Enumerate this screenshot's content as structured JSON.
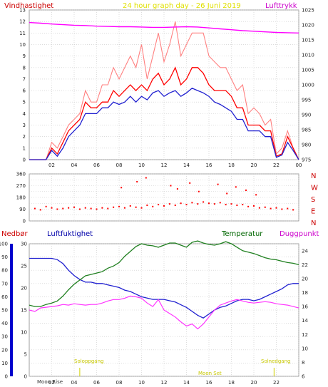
{
  "colors": {
    "wind": "#ff0000",
    "gust": "#ff8080",
    "pressure": "#ff00ff",
    "avg_wind": "#2020d0",
    "humidity": "#2020d0",
    "temperature": "#208020",
    "dewpoint": "#ff33ff",
    "rain": "#0000cc",
    "title": "#e0e000",
    "sun": "#d0d000"
  },
  "chart_data": [
    {
      "type": "line",
      "panel": "wind-pressure",
      "title": "24 hour graph day - 26 Juni 2019",
      "left_label": "Vindhastighet",
      "right_label": "Lufttrykk",
      "xticks": [
        "02",
        "04",
        "06",
        "08",
        "10",
        "12",
        "14",
        "16",
        "18",
        "20",
        "22",
        "00"
      ],
      "ylim_left": [
        0,
        13
      ],
      "yticks_left": [
        "0",
        "1",
        "2",
        "3",
        "4",
        "5",
        "6",
        "7",
        "8",
        "9",
        "10",
        "11",
        "12",
        "13"
      ],
      "ylim_right": [
        975,
        1025
      ],
      "yticks_right": [
        "975",
        "980",
        "985",
        "990",
        "995",
        "1000",
        "1005",
        "1010",
        "1015",
        "1020",
        "1025"
      ],
      "series": [
        {
          "key": "gust",
          "x": [
            0,
            0.5,
            1,
            1.5,
            2,
            2.5,
            3,
            3.5,
            4,
            4.5,
            5,
            5.5,
            6,
            6.5,
            7,
            7.5,
            8,
            8.5,
            9,
            9.5,
            10,
            10.5,
            11,
            11.5,
            12,
            12.5,
            13,
            13.5,
            14,
            14.5,
            15,
            15.5,
            16,
            16.5,
            17,
            17.5,
            18,
            18.5,
            19,
            19.5,
            20,
            20.5,
            21,
            21.5,
            22,
            22.5,
            23,
            23.5,
            24
          ],
          "y": [
            0,
            0,
            0,
            0,
            1.5,
            1,
            2,
            3,
            3.5,
            4,
            6,
            5,
            5,
            6.5,
            6.5,
            8,
            7,
            8,
            9,
            8,
            10,
            7,
            9,
            11,
            8.5,
            10,
            12,
            9,
            10,
            11,
            11,
            11,
            9,
            8.5,
            8,
            8,
            7,
            6,
            6.5,
            4,
            4.5,
            4,
            3,
            3.5,
            0.5,
            1,
            2.5,
            1,
            0
          ]
        },
        {
          "key": "wind",
          "x": [
            0,
            0.5,
            1,
            1.5,
            2,
            2.5,
            3,
            3.5,
            4,
            4.5,
            5,
            5.5,
            6,
            6.5,
            7,
            7.5,
            8,
            8.5,
            9,
            9.5,
            10,
            10.5,
            11,
            11.5,
            12,
            12.5,
            13,
            13.5,
            14,
            14.5,
            15,
            15.5,
            16,
            16.5,
            17,
            17.5,
            18,
            18.5,
            19,
            19.5,
            20,
            20.5,
            21,
            21.5,
            22,
            22.5,
            23,
            23.5,
            24
          ],
          "y": [
            0,
            0,
            0,
            0,
            1,
            0.5,
            1.5,
            2.5,
            3,
            3.5,
            5,
            4.5,
            4.5,
            5,
            5,
            6,
            5.5,
            6,
            6.5,
            6,
            6.5,
            6,
            7,
            7.5,
            6.5,
            7,
            8,
            6.5,
            7,
            8,
            8,
            7.5,
            6.5,
            6,
            6,
            6,
            5.5,
            4.5,
            4.5,
            3,
            3,
            3,
            2.5,
            2.5,
            0.3,
            0.5,
            2,
            1,
            0
          ]
        },
        {
          "key": "avg_wind",
          "x": [
            0,
            0.5,
            1,
            1.5,
            2,
            2.5,
            3,
            3.5,
            4,
            4.5,
            5,
            5.5,
            6,
            6.5,
            7,
            7.5,
            8,
            8.5,
            9,
            9.5,
            10,
            10.5,
            11,
            11.5,
            12,
            12.5,
            13,
            13.5,
            14,
            14.5,
            15,
            15.5,
            16,
            16.5,
            17,
            17.5,
            18,
            18.5,
            19,
            19.5,
            20,
            20.5,
            21,
            21.5,
            22,
            22.5,
            23,
            23.5,
            24
          ],
          "y": [
            0,
            0,
            0,
            0,
            0.8,
            0.3,
            1,
            2,
            2.5,
            3,
            4,
            4,
            4,
            4.5,
            4.5,
            5,
            4.8,
            5,
            5.5,
            5,
            5.5,
            5.2,
            5.8,
            6,
            5.5,
            5.8,
            6,
            5.5,
            5.8,
            6.2,
            6,
            5.8,
            5.5,
            5,
            4.8,
            4.5,
            4.2,
            3.5,
            3.5,
            2.5,
            2.5,
            2.5,
            2,
            2,
            0.2,
            0.4,
            1.5,
            0.8,
            0
          ]
        },
        {
          "key": "pressure",
          "x": [
            0,
            1,
            2,
            3,
            4,
            5,
            6,
            7,
            8,
            9,
            10,
            11,
            12,
            13,
            14,
            15,
            16,
            17,
            18,
            19,
            20,
            21,
            22,
            23,
            24
          ],
          "y": [
            1020.8,
            1020.6,
            1020.3,
            1020.1,
            1019.9,
            1019.8,
            1019.6,
            1019.5,
            1019.4,
            1019.4,
            1019.3,
            1019.2,
            1019.2,
            1019.3,
            1019.4,
            1019.3,
            1019.0,
            1018.7,
            1018.4,
            1018.1,
            1017.9,
            1017.7,
            1017.5,
            1017.4,
            1017.3
          ]
        }
      ]
    },
    {
      "type": "scatter",
      "panel": "wind-direction",
      "ylim": [
        0,
        360
      ],
      "yticks": [
        "0",
        "45",
        "90",
        "135",
        "180",
        "225",
        "270",
        "315",
        "360"
      ],
      "direction_labels": [
        "N",
        "W",
        "S",
        "E",
        "N"
      ],
      "x": [
        0.5,
        1,
        1.5,
        2,
        2.5,
        3,
        3.5,
        4,
        4.5,
        5,
        5.5,
        6,
        6.5,
        7,
        7.5,
        8,
        8.5,
        9,
        9.5,
        10,
        10.5,
        11,
        11.5,
        12,
        12.5,
        13,
        13.5,
        14,
        14.5,
        15,
        15.5,
        16,
        16.5,
        17,
        17.5,
        18,
        18.5,
        19,
        19.5,
        20,
        20.5,
        21,
        21.5,
        22,
        22.5,
        23,
        23.5,
        8.2,
        9.6,
        10.4,
        12.6,
        13.2,
        14.3,
        15.1,
        16.8,
        17.6,
        18.4,
        19.3,
        20.2
      ],
      "y": [
        95,
        85,
        110,
        100,
        90,
        95,
        100,
        105,
        90,
        100,
        95,
        90,
        100,
        95,
        105,
        110,
        100,
        115,
        105,
        100,
        120,
        110,
        125,
        115,
        130,
        120,
        135,
        125,
        140,
        130,
        145,
        135,
        130,
        140,
        125,
        130,
        120,
        125,
        110,
        115,
        100,
        105,
        95,
        100,
        90,
        95,
        85,
        255,
        300,
        330,
        270,
        245,
        290,
        225,
        280,
        210,
        260,
        235,
        200
      ]
    },
    {
      "type": "line",
      "panel": "humidity-temperature",
      "labels": {
        "rain": "Nedbør",
        "humidity": "Luftfuktighet",
        "temperature": "Temperatur",
        "dewpoint": "Duggpunkt"
      },
      "ylim_humidity": [
        0,
        100
      ],
      "yticks_humidity": [
        "0",
        "10",
        "20",
        "30",
        "40",
        "50",
        "60",
        "70",
        "80",
        "90",
        "100"
      ],
      "ylim_rain": [
        0,
        30
      ],
      "yticks_rain": [
        "0",
        "5",
        "10",
        "15",
        "20",
        "25",
        "30"
      ],
      "ylim_temp": [
        6,
        25
      ],
      "yticks_temp": [
        "6",
        "8",
        "10",
        "12",
        "14",
        "16",
        "18",
        "20",
        "22",
        "24"
      ],
      "sun_labels": [
        "Soloppgang",
        "Solnedgang"
      ],
      "sun_x": [
        4.5,
        21.8
      ],
      "moon_labels": [
        "Moon Rise",
        "Moon Set"
      ],
      "series": [
        {
          "key": "humidity",
          "x": [
            0,
            0.5,
            1,
            1.5,
            2,
            2.5,
            3,
            3.5,
            4,
            4.5,
            5,
            5.5,
            6,
            6.5,
            7,
            7.5,
            8,
            8.5,
            9,
            9.5,
            10,
            10.5,
            11,
            11.5,
            12,
            12.5,
            13,
            13.5,
            14,
            14.5,
            15,
            15.5,
            16,
            16.5,
            17,
            17.5,
            18,
            18.5,
            19,
            19.5,
            20,
            20.5,
            21,
            21.5,
            22,
            22.5,
            23,
            23.5,
            24
          ],
          "y": [
            89,
            89,
            89,
            89,
            89,
            88,
            85,
            80,
            76,
            73,
            71,
            71,
            70,
            70,
            69,
            68,
            67,
            65,
            64,
            62,
            60,
            59,
            58,
            58,
            58,
            57,
            56,
            54,
            52,
            49,
            46,
            44,
            47,
            50,
            52,
            53,
            55,
            57,
            58,
            58,
            57,
            58,
            60,
            62,
            64,
            66,
            69,
            70,
            70
          ]
        },
        {
          "key": "temperature",
          "x": [
            0,
            0.5,
            1,
            1.5,
            2,
            2.5,
            3,
            3.5,
            4,
            4.5,
            5,
            5.5,
            6,
            6.5,
            7,
            7.5,
            8,
            8.5,
            9,
            9.5,
            10,
            10.5,
            11,
            11.5,
            12,
            12.5,
            13,
            13.5,
            14,
            14.5,
            15,
            15.5,
            16,
            16.5,
            17,
            17.5,
            18,
            18.5,
            19,
            19.5,
            20,
            20.5,
            21,
            21.5,
            22,
            22.5,
            23,
            23.5,
            24
          ],
          "y": [
            16.2,
            16.0,
            16.0,
            16.3,
            16.5,
            16.8,
            17.5,
            18.4,
            19.2,
            19.8,
            20.4,
            20.6,
            20.8,
            21.0,
            21.5,
            21.8,
            22.3,
            23.2,
            23.9,
            24.6,
            25.0,
            24.8,
            24.7,
            24.5,
            24.8,
            25.1,
            25.1,
            24.8,
            24.5,
            25.2,
            25.4,
            25.1,
            24.9,
            24.8,
            25.0,
            25.3,
            25.0,
            24.5,
            24.0,
            23.8,
            23.6,
            23.3,
            23.0,
            22.8,
            22.7,
            22.5,
            22.3,
            22.2,
            22.0
          ]
        },
        {
          "key": "dewpoint",
          "x": [
            0,
            0.5,
            1,
            1.5,
            2,
            2.5,
            3,
            3.5,
            4,
            4.5,
            5,
            5.5,
            6,
            6.5,
            7,
            7.5,
            8,
            8.5,
            9,
            9.5,
            10,
            10.5,
            11,
            11.5,
            12,
            12.5,
            13,
            13.5,
            14,
            14.5,
            15,
            15.5,
            16,
            16.5,
            17,
            17.5,
            18,
            18.5,
            19,
            19.5,
            20,
            20.5,
            21,
            21.5,
            22,
            22.5,
            23,
            23.5,
            24
          ],
          "y": [
            15.5,
            15.3,
            15.8,
            15.9,
            16.0,
            16.1,
            16.3,
            16.2,
            16.4,
            16.3,
            16.2,
            16.3,
            16.3,
            16.5,
            16.8,
            17.0,
            17.0,
            17.2,
            17.5,
            17.4,
            17.2,
            16.5,
            16.0,
            17.0,
            15.5,
            15.0,
            14.5,
            13.8,
            13.2,
            13.5,
            12.8,
            13.5,
            14.5,
            15.5,
            16.2,
            16.5,
            16.8,
            17.0,
            16.8,
            16.6,
            16.5,
            16.6,
            16.7,
            16.6,
            16.4,
            16.3,
            16.2,
            16.0,
            15.8
          ]
        }
      ]
    }
  ]
}
